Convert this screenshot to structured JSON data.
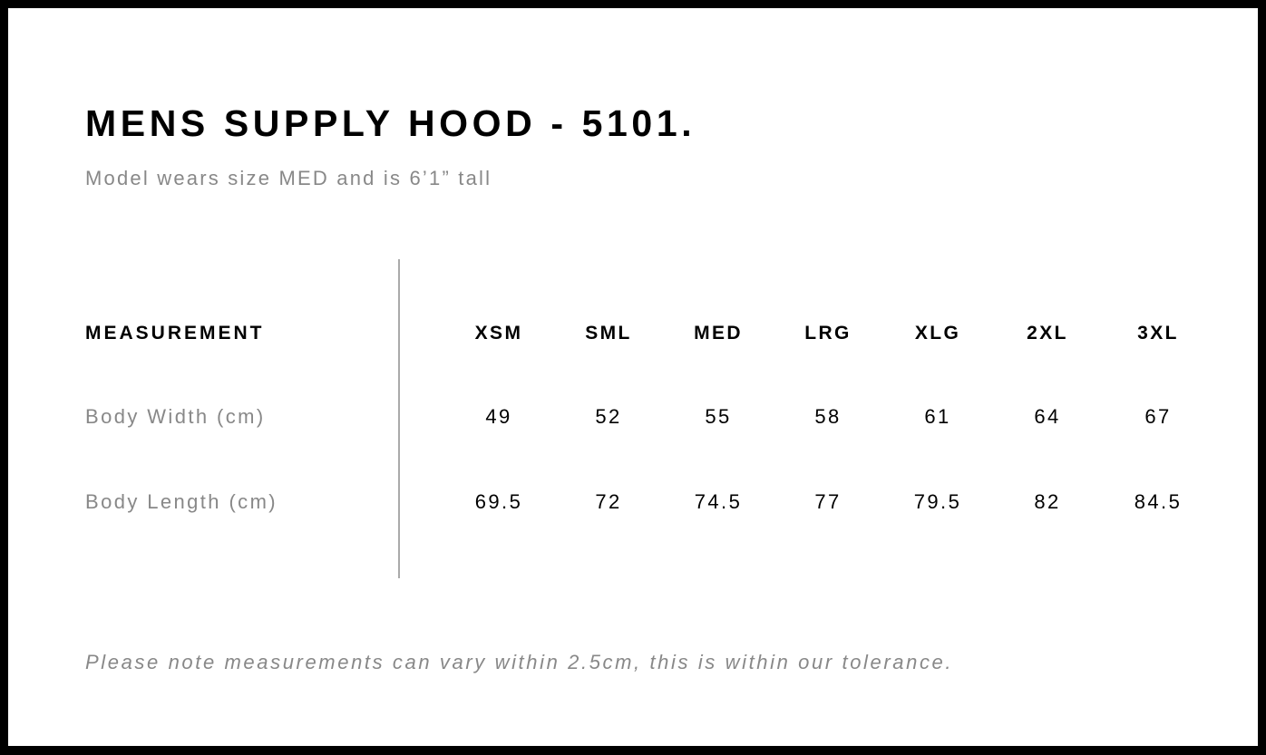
{
  "title": "MENS SUPPLY HOOD - 5101.",
  "subtitle": "Model wears size MED and is 6’1” tall",
  "table": {
    "header_label": "MEASUREMENT",
    "sizes": [
      "XSM",
      "SML",
      "MED",
      "LRG",
      "XLG",
      "2XL",
      "3XL"
    ],
    "rows": [
      {
        "label": "Body Width (cm)",
        "values": [
          "49",
          "52",
          "55",
          "58",
          "61",
          "64",
          "67"
        ]
      },
      {
        "label": "Body Length (cm)",
        "values": [
          "69.5",
          "72",
          "74.5",
          "77",
          "79.5",
          "82",
          "84.5"
        ]
      }
    ]
  },
  "note": "Please note measurements can vary within 2.5cm, this is within our tolerance.",
  "colors": {
    "frame": "#000000",
    "muted_text": "#888888",
    "divider": "#aaaaaa"
  }
}
